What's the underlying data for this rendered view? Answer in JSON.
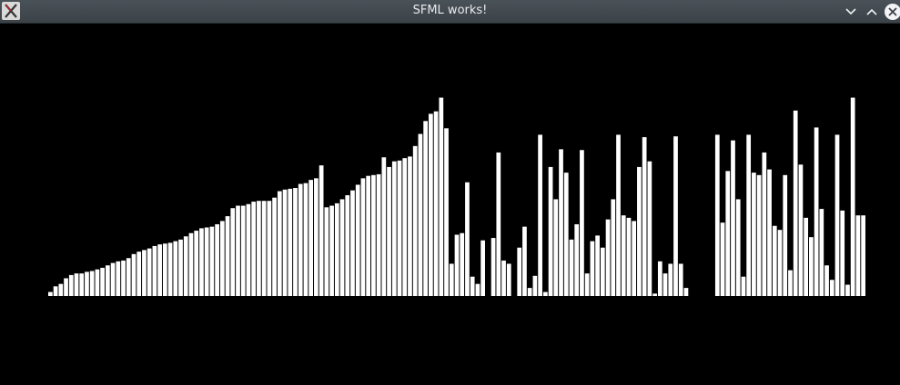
{
  "window": {
    "title": "SFML works!"
  },
  "icons": {
    "app": "app-x-icon",
    "minimize": "chevron-down-icon",
    "maximize": "chevron-up-icon",
    "close": "close-icon"
  },
  "colors": {
    "titlebar": "#40474d",
    "background": "#000000",
    "bar": "#ffffff",
    "title_text": "#e8eaeb"
  },
  "chart_data": {
    "type": "bar",
    "title": "",
    "xlabel": "",
    "ylabel": "",
    "grid": false,
    "ylim": [
      0,
      250
    ],
    "values": [
      5,
      12,
      15,
      22,
      26,
      28,
      28,
      30,
      31,
      33,
      35,
      38,
      41,
      43,
      44,
      47,
      52,
      55,
      57,
      59,
      62,
      64,
      65,
      66,
      68,
      70,
      74,
      78,
      81,
      84,
      85,
      86,
      89,
      93,
      99,
      109,
      112,
      112,
      114,
      117,
      118,
      118,
      118,
      122,
      130,
      132,
      133,
      134,
      139,
      140,
      144,
      146,
      162,
      110,
      112,
      115,
      120,
      125,
      131,
      138,
      146,
      149,
      150,
      151,
      172,
      160,
      167,
      168,
      171,
      173,
      186,
      201,
      217,
      226,
      229,
      246,
      208,
      40,
      76,
      78,
      141,
      24,
      15,
      69,
      0,
      72,
      178,
      44,
      40,
      0,
      60,
      86,
      10,
      25,
      200,
      5,
      160,
      120,
      182,
      153,
      70,
      89,
      181,
      28,
      68,
      75,
      60,
      95,
      120,
      200,
      100,
      97,
      93,
      160,
      197,
      167,
      3,
      43,
      28,
      40,
      198,
      40,
      10,
      0,
      0,
      0,
      0,
      0,
      200,
      91,
      155,
      193,
      120,
      24,
      200,
      153,
      150,
      178,
      157,
      87,
      82,
      150,
      32,
      230,
      163,
      97,
      73,
      209,
      108,
      38,
      20,
      200,
      106,
      14,
      246,
      100,
      100
    ]
  }
}
